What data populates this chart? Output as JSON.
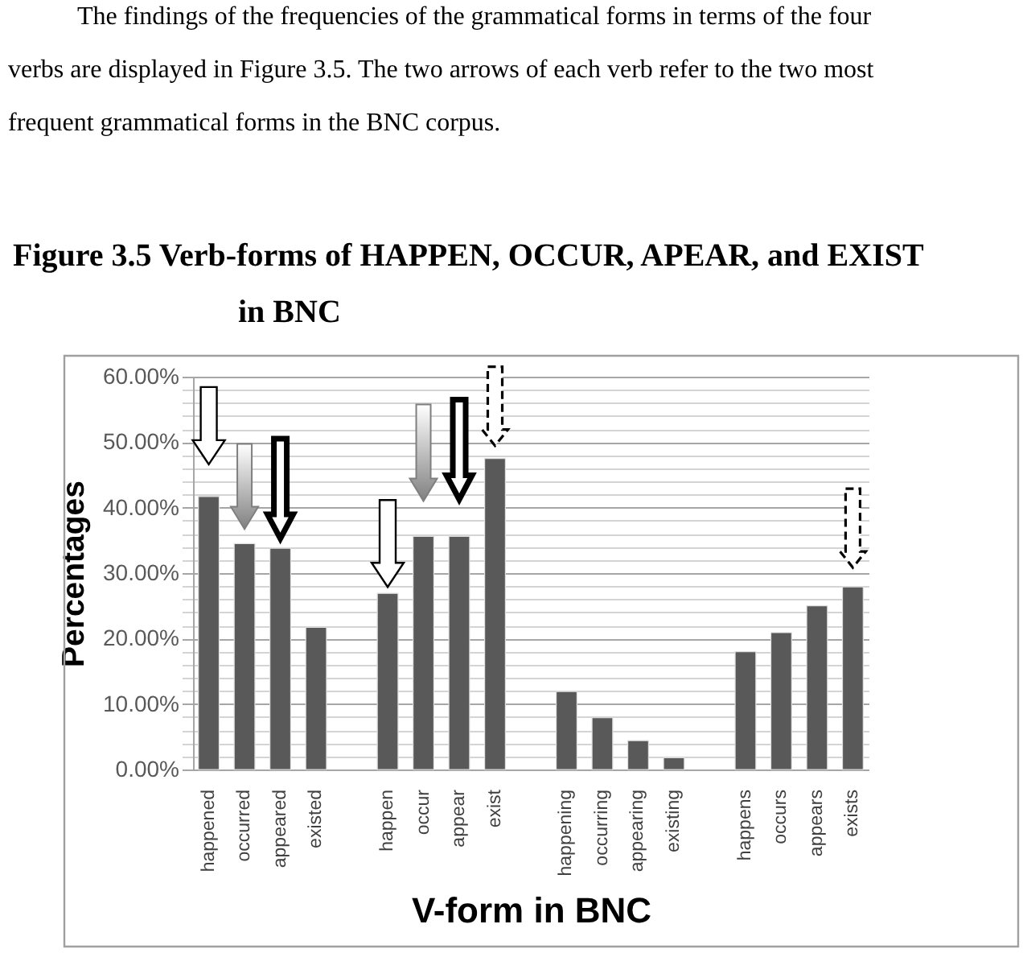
{
  "chart_data": {
    "type": "bar",
    "title": "Figure 3.5 Verb-forms of HAPPEN, OCCUR, APEAR, and EXIST in BNC",
    "annotations": [
      "The findings of the frequencies of the grammatical forms in terms of the four verbs are displayed in Figure 3.5. The two arrows of each verb refer to the two most frequent grammatical forms in the BNC corpus."
    ],
    "xlabel": "V-form in BNC",
    "ylabel": "Percentages",
    "categories": [
      "happened",
      "occurred",
      "appeared",
      "existed",
      null,
      "happen",
      "occur",
      "appear",
      "exist",
      null,
      "happening",
      "occurring",
      "appearing",
      "existing",
      null,
      "happens",
      "occurs",
      "appears",
      "exists"
    ],
    "values": [
      41.7,
      34.5,
      33.8,
      21.7,
      null,
      26.9,
      35.6,
      35.6,
      47.5,
      null,
      11.9,
      7.9,
      4.4,
      1.8,
      null,
      18.0,
      20.9,
      25.0,
      27.9
    ],
    "color": "#595959",
    "ylim": [
      0,
      60
    ],
    "yticks": [
      {
        "value": 0,
        "label": "0.00%"
      },
      {
        "value": 2,
        "label": null
      },
      {
        "value": 4,
        "label": null
      },
      {
        "value": 6,
        "label": null
      },
      {
        "value": 8,
        "label": null
      },
      {
        "value": 10,
        "label": "10.00%"
      },
      {
        "value": 12,
        "label": null
      },
      {
        "value": 14,
        "label": null
      },
      {
        "value": 16,
        "label": null
      },
      {
        "value": 18,
        "label": null
      },
      {
        "value": 20,
        "label": "20.00%"
      },
      {
        "value": 22,
        "label": null
      },
      {
        "value": 24,
        "label": null
      },
      {
        "value": 26,
        "label": null
      },
      {
        "value": 28,
        "label": null
      },
      {
        "value": 30,
        "label": "30.00%"
      },
      {
        "value": 32,
        "label": null
      },
      {
        "value": 34,
        "label": null
      },
      {
        "value": 36,
        "label": null
      },
      {
        "value": 38,
        "label": null
      },
      {
        "value": 40,
        "label": "40.00%"
      },
      {
        "value": 42,
        "label": null
      },
      {
        "value": 44,
        "label": null
      },
      {
        "value": 46,
        "label": null
      },
      {
        "value": 48,
        "label": null
      },
      {
        "value": 50,
        "label": "50.00%"
      },
      {
        "value": 52,
        "label": null
      },
      {
        "value": 54,
        "label": null
      },
      {
        "value": 56,
        "label": null
      },
      {
        "value": 58,
        "label": null
      },
      {
        "value": 60,
        "label": "60.00%"
      }
    ],
    "grid": "y"
  }
}
